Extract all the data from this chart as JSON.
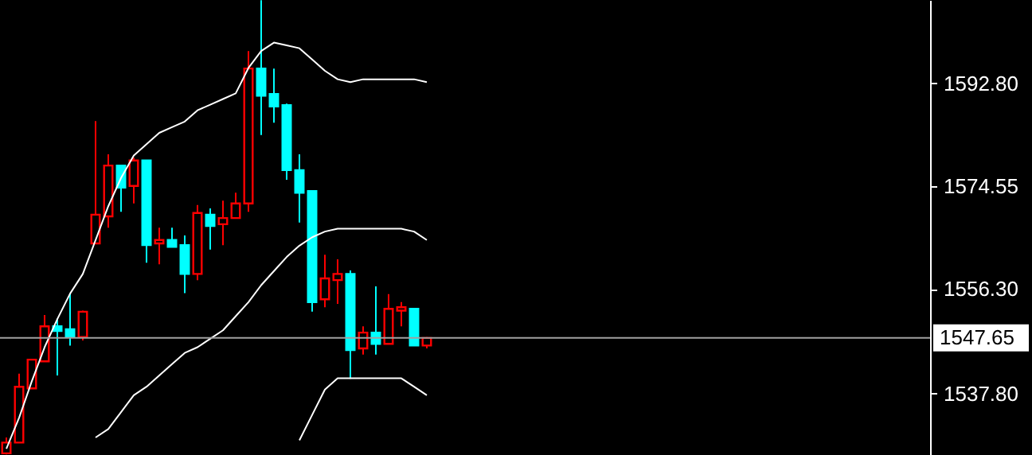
{
  "chart_data": {
    "type": "candlestick",
    "categories": [
      null,
      null,
      null,
      null,
      null,
      null,
      null,
      null,
      null,
      null,
      null,
      null,
      null,
      null,
      null,
      null,
      null,
      null,
      null,
      null,
      null,
      null,
      null,
      null,
      null,
      null,
      null,
      null,
      null,
      null,
      null,
      null,
      null,
      null,
      null,
      null,
      null,
      null,
      null,
      null,
      null,
      null,
      null,
      null,
      null,
      null,
      null,
      null,
      null,
      null,
      null,
      null,
      null,
      null,
      null,
      null,
      null,
      null,
      null,
      null,
      null,
      null,
      null,
      null,
      null,
      null,
      null,
      null,
      null,
      null,
      null,
      null,
      null
    ],
    "ohlc": [
      [
        1527.2,
        1530.0,
        1527.0,
        1529.1
      ],
      [
        1529.1,
        1541.3,
        1529.1,
        1539.0
      ],
      [
        1538.7,
        1543.8,
        1538.7,
        1543.8
      ],
      [
        1543.5,
        1551.7,
        1543.5,
        1549.7
      ],
      [
        1549.7,
        1551.1,
        1541.0,
        1548.9
      ],
      [
        1549.2,
        1555.6,
        1546.3,
        1547.8
      ],
      [
        1547.8,
        1552.5,
        1547.2,
        1552.3
      ],
      [
        1564.4,
        1586.1,
        1564.4,
        1569.5
      ],
      [
        1569.2,
        1580.2,
        1567.2,
        1578.2
      ],
      [
        1578.2,
        1578.2,
        1570.0,
        1574.3
      ],
      [
        1574.6,
        1579.6,
        1571.5,
        1579.1
      ],
      [
        1579.1,
        1579.1,
        1561.0,
        1564.1
      ],
      [
        1564.4,
        1567.2,
        1560.7,
        1565.0
      ],
      [
        1565.0,
        1567.2,
        1563.8,
        1563.8
      ],
      [
        1564.1,
        1565.8,
        1555.6,
        1559.0
      ],
      [
        1559.0,
        1571.2,
        1557.9,
        1569.8
      ],
      [
        1569.5,
        1570.6,
        1563.3,
        1567.5
      ],
      [
        1567.8,
        1572.0,
        1564.1,
        1568.9
      ],
      [
        1568.9,
        1573.4,
        1568.9,
        1571.5
      ],
      [
        1571.5,
        1598.5,
        1570.0,
        1595.4
      ],
      [
        1595.4,
        1607.5,
        1583.6,
        1590.6
      ],
      [
        1590.9,
        1595.4,
        1585.8,
        1588.7
      ],
      [
        1588.9,
        1589.2,
        1575.7,
        1577.4
      ],
      [
        1577.4,
        1580.2,
        1568.1,
        1573.4
      ],
      [
        1573.7,
        1573.7,
        1552.3,
        1554.0
      ],
      [
        1554.5,
        1562.4,
        1553.1,
        1558.2
      ],
      [
        1557.9,
        1561.6,
        1553.7,
        1559.0
      ],
      [
        1559.0,
        1559.6,
        1540.4,
        1545.5
      ],
      [
        1545.8,
        1549.7,
        1544.7,
        1548.6
      ],
      [
        1548.6,
        1556.8,
        1544.7,
        1546.6
      ],
      [
        1546.6,
        1555.4,
        1546.6,
        1552.8
      ],
      [
        1552.5,
        1554.0,
        1549.7,
        1553.1
      ],
      [
        1552.8,
        1552.8,
        1546.3,
        1546.3
      ],
      [
        1546.3,
        1547.8,
        1545.8,
        1547.65
      ],
      null,
      null,
      null,
      null,
      null,
      null,
      null,
      null,
      null,
      null,
      null,
      null,
      null,
      null,
      null,
      null,
      null,
      null,
      null,
      null,
      null,
      null,
      null,
      null,
      null,
      null,
      null,
      null,
      null,
      null,
      null,
      null,
      null,
      null,
      null,
      null,
      null,
      null,
      null
    ],
    "colors": [
      "#ff0000",
      "#ff0000",
      "#ff0000",
      "#ff0000",
      "#00ffff",
      "#00ffff",
      "#ff0000",
      "#ff0000",
      "#ff0000",
      "#00ffff",
      "#ff0000",
      "#00ffff",
      "#ff0000",
      "#00ffff",
      "#00ffff",
      "#ff0000",
      "#00ffff",
      "#ff0000",
      "#ff0000",
      "#ff0000",
      "#00ffff",
      "#00ffff",
      "#00ffff",
      "#00ffff",
      "#00ffff",
      "#ff0000",
      "#ff0000",
      "#00ffff",
      "#ff0000",
      "#00ffff",
      "#ff0000",
      "#ff0000",
      "#00ffff",
      "#ff0000",
      null,
      null,
      null,
      null,
      null,
      null,
      null,
      null,
      null,
      null,
      null,
      null,
      null,
      null,
      null,
      null,
      null,
      null,
      null,
      null,
      null,
      null,
      null,
      null,
      null,
      null,
      null,
      null,
      null,
      null,
      null,
      null,
      null,
      null,
      null,
      null,
      null,
      null,
      null
    ],
    "series": [
      {
        "type": "line",
        "color": "#ffffff",
        "values": [
          1528,
          1533.5,
          1540,
          1546,
          1551,
          1555.5,
          1559,
          1565,
          1571,
          1576,
          1580,
          1582,
          1584,
          1585,
          1586,
          1588,
          1589,
          1590,
          1591,
          1595.5,
          1598.5,
          1600,
          1599.5,
          1599,
          1597,
          1595,
          1593.5,
          1593,
          1593.5,
          1593.5,
          1593.5,
          1593.5,
          1593.5,
          1593,
          null,
          null,
          null,
          null,
          null,
          null,
          null,
          null,
          null,
          null,
          null,
          null,
          null,
          null,
          null,
          null,
          null,
          null,
          null,
          null,
          null,
          null,
          null,
          null,
          null,
          null,
          null,
          null,
          null,
          null,
          null,
          null,
          null,
          null,
          null,
          null,
          null,
          null,
          null
        ]
      },
      {
        "type": "line",
        "color": "#ffffff",
        "values": [
          null,
          null,
          null,
          null,
          null,
          null,
          null,
          1530,
          1531.5,
          1534.5,
          1537.5,
          1539,
          1541,
          1543,
          1545,
          1546,
          1547.5,
          1549,
          1551.5,
          1554,
          1557,
          1559.5,
          1562,
          1564,
          1565.5,
          1566.5,
          1567,
          1567,
          1567,
          1567,
          1567,
          1567,
          1566.5,
          1565,
          null,
          null,
          null,
          null,
          null,
          null,
          null,
          null,
          null,
          null,
          null,
          null,
          null,
          null,
          null,
          null,
          null,
          null,
          null,
          null,
          null,
          null,
          null,
          null,
          null,
          null,
          null,
          null,
          null,
          null,
          null,
          null,
          null,
          null,
          null,
          null,
          null,
          null,
          null
        ]
      },
      {
        "type": "line",
        "color": "#ffffff",
        "values": [
          null,
          null,
          null,
          null,
          null,
          null,
          null,
          null,
          null,
          null,
          null,
          null,
          null,
          null,
          null,
          null,
          null,
          null,
          null,
          null,
          null,
          null,
          null,
          1529.5,
          1534,
          1538.5,
          1540.5,
          1540.5,
          1540.5,
          1540.5,
          1540.5,
          1540.5,
          1539,
          1537.5,
          null,
          null,
          null,
          null,
          null,
          null,
          null,
          null,
          null,
          null,
          null,
          null,
          null,
          null,
          null,
          null,
          null,
          null,
          null,
          null,
          null,
          null,
          null,
          null,
          null,
          null,
          null,
          null,
          null,
          null,
          null,
          null,
          null,
          null,
          null,
          null,
          null,
          null,
          null
        ]
      }
    ],
    "ylim": [
      1526.9,
      1607.55
    ],
    "yticks": [
      {
        "value": 1592.8,
        "label": "1592.80"
      },
      {
        "value": 1574.55,
        "label": "1574.55"
      },
      {
        "value": 1556.3,
        "label": "1556.30"
      },
      {
        "value": 1537.8,
        "label": "1537.80"
      }
    ],
    "ref_lines": [
      {
        "axis": "y",
        "value": 1547.65,
        "label": "1547.65",
        "color": "#a0a0a0"
      }
    ],
    "tick_labels": "y",
    "grid": false
  }
}
